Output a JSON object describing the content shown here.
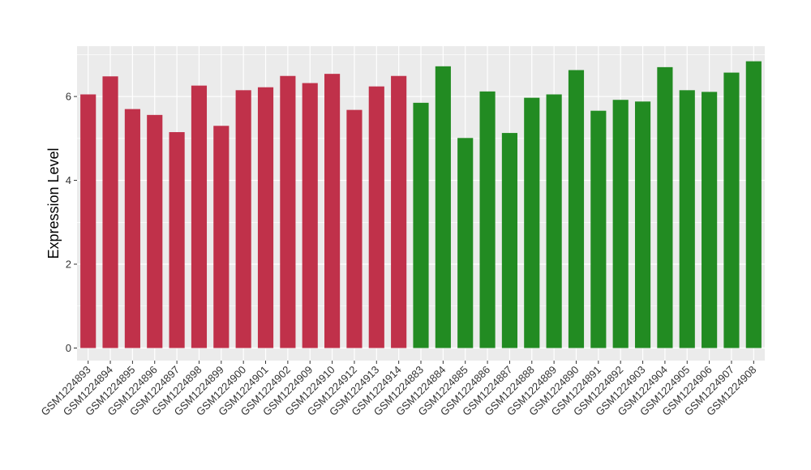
{
  "chart_data": {
    "type": "bar",
    "title": "",
    "xlabel": "",
    "ylabel": "Expression Level",
    "ylim": [
      -0.3,
      7.2
    ],
    "yticks": [
      0,
      2,
      4,
      6
    ],
    "grid": true,
    "categories": [
      "GSM1224893",
      "GSM1224894",
      "GSM1224895",
      "GSM1224896",
      "GSM1224897",
      "GSM1224898",
      "GSM1224899",
      "GSM1224900",
      "GSM1224901",
      "GSM1224902",
      "GSM1224909",
      "GSM1224910",
      "GSM1224912",
      "GSM1224913",
      "GSM1224914",
      "GSM1224883",
      "GSM1224884",
      "GSM1224885",
      "GSM1224886",
      "GSM1224887",
      "GSM1224888",
      "GSM1224889",
      "GSM1224890",
      "GSM1224891",
      "GSM1224892",
      "GSM1224903",
      "GSM1224904",
      "GSM1224905",
      "GSM1224906",
      "GSM1224907",
      "GSM1224908"
    ],
    "values": [
      6.05,
      6.48,
      5.7,
      5.56,
      5.15,
      6.26,
      5.3,
      6.15,
      6.22,
      6.49,
      6.32,
      6.54,
      5.68,
      6.24,
      6.49,
      5.85,
      6.72,
      5.01,
      6.12,
      5.13,
      5.97,
      6.05,
      6.63,
      5.66,
      5.92,
      5.88,
      6.7,
      6.15,
      6.11,
      6.57,
      6.84
    ],
    "groups": [
      0,
      0,
      0,
      0,
      0,
      0,
      0,
      0,
      0,
      0,
      0,
      0,
      0,
      0,
      0,
      1,
      1,
      1,
      1,
      1,
      1,
      1,
      1,
      1,
      1,
      1,
      1,
      1,
      1,
      1,
      1
    ],
    "colors": [
      "#C0314A",
      "#228B22"
    ],
    "panel_background": "#EBEBEB",
    "gridline_color": "#FFFFFF"
  }
}
